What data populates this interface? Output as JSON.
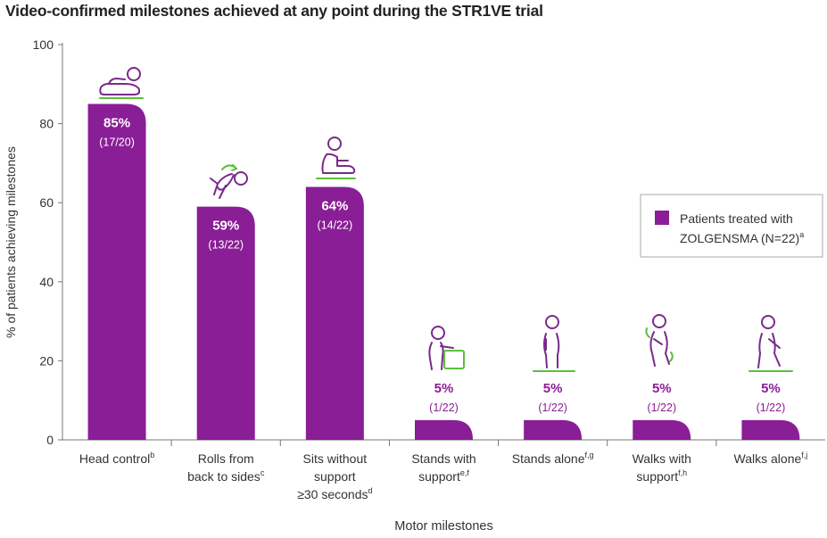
{
  "chart_data": {
    "type": "bar",
    "title": "Video-confirmed milestones achieved at any point during the STR1VE trial",
    "xlabel": "Motor milestones",
    "ylabel": "% of patients achieving milestones",
    "ylim": [
      0,
      100
    ],
    "yticks": [
      "0",
      "20",
      "40",
      "60",
      "80",
      "100"
    ],
    "grid": false,
    "legend": {
      "placement": "right",
      "lines": [
        "Patients treated with",
        "ZOLGENSMA (N=22)"
      ],
      "sup": "a"
    },
    "colors": {
      "bar": "#8a1e96",
      "icon": "#7a2a8c",
      "accent": "#5bbf3a",
      "axis": "#777777"
    },
    "categories": [
      {
        "lines": [
          "Head control"
        ],
        "sup": "b",
        "icon": "head-control-icon"
      },
      {
        "lines": [
          "Rolls from",
          "back to sides"
        ],
        "sup": "c",
        "icon": "rolling-icon"
      },
      {
        "lines": [
          "Sits without",
          "support",
          "≥30 seconds"
        ],
        "sup": "d",
        "icon": "sitting-icon"
      },
      {
        "lines": [
          "Stands with",
          "support"
        ],
        "sup": "e,f",
        "icon": "standing-support-icon"
      },
      {
        "lines": [
          "Stands alone"
        ],
        "sup": "f,g",
        "icon": "standing-icon"
      },
      {
        "lines": [
          "Walks with",
          "support"
        ],
        "sup": "f,h",
        "icon": "walking-support-icon"
      },
      {
        "lines": [
          "Walks alone"
        ],
        "sup": "f,j",
        "icon": "walking-icon"
      }
    ],
    "series": [
      {
        "values": [
          85,
          59,
          64,
          5,
          5,
          5,
          5
        ],
        "labels": [
          "85%",
          "59%",
          "64%",
          "5%",
          "5%",
          "5%",
          "5%"
        ],
        "counts": [
          "(17/20)",
          "(13/22)",
          "(14/22)",
          "(1/22)",
          "(1/22)",
          "(1/22)",
          "(1/22)"
        ]
      }
    ]
  }
}
